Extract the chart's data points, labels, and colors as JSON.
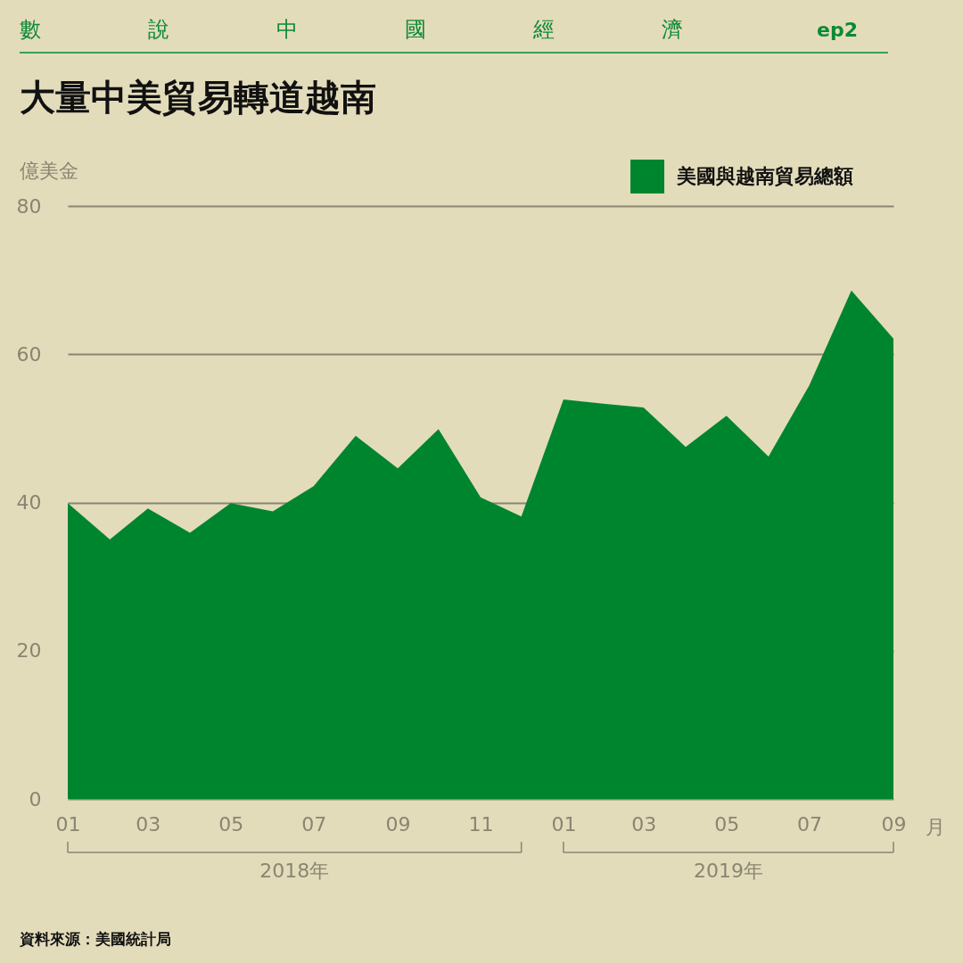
{
  "chart_data": {
    "type": "area",
    "title": "大量中美貿易轉道越南",
    "subtitle": "數說中國經濟",
    "ylabel": "億美金",
    "xlabel": "月",
    "x": [
      "2018-01",
      "2018-02",
      "2018-03",
      "2018-04",
      "2018-05",
      "2018-06",
      "2018-07",
      "2018-08",
      "2018-09",
      "2018-10",
      "2018-11",
      "2018-12",
      "2019-01",
      "2019-02",
      "2019-03",
      "2019-04",
      "2019-05",
      "2019-06",
      "2019-07",
      "2019-08",
      "2019-09"
    ],
    "series": [
      {
        "name": "美國與越南貿易總額",
        "color": "#00852f",
        "values": [
          39.9,
          35.0,
          39.2,
          35.9,
          39.9,
          38.8,
          42.2,
          49.0,
          44.6,
          49.9,
          40.7,
          38.1,
          53.9,
          53.3,
          52.8,
          47.5,
          51.7,
          46.2,
          55.8,
          68.6,
          62.1
        ]
      }
    ],
    "xlim": [
      "2018-01",
      "2019-09"
    ],
    "xticks": [
      {
        "value": "2018-01",
        "label": "01"
      },
      {
        "value": "2018-03",
        "label": "03"
      },
      {
        "value": "2018-05",
        "label": "05"
      },
      {
        "value": "2018-07",
        "label": "07"
      },
      {
        "value": "2018-09",
        "label": "09"
      },
      {
        "value": "2018-11",
        "label": "11"
      },
      {
        "value": "2019-01",
        "label": "01"
      },
      {
        "value": "2019-03",
        "label": "03"
      },
      {
        "value": "2019-05",
        "label": "05"
      },
      {
        "value": "2019-07",
        "label": "07"
      },
      {
        "value": "2019-09",
        "label": "09"
      }
    ],
    "ylim": [
      0,
      80
    ],
    "yticks": [
      0,
      20,
      40,
      60,
      80
    ],
    "grid": "y",
    "legend": "top right",
    "annotations": [
      "2018年",
      "2019年",
      "資料來源：美國統計局",
      "ep2"
    ]
  }
}
